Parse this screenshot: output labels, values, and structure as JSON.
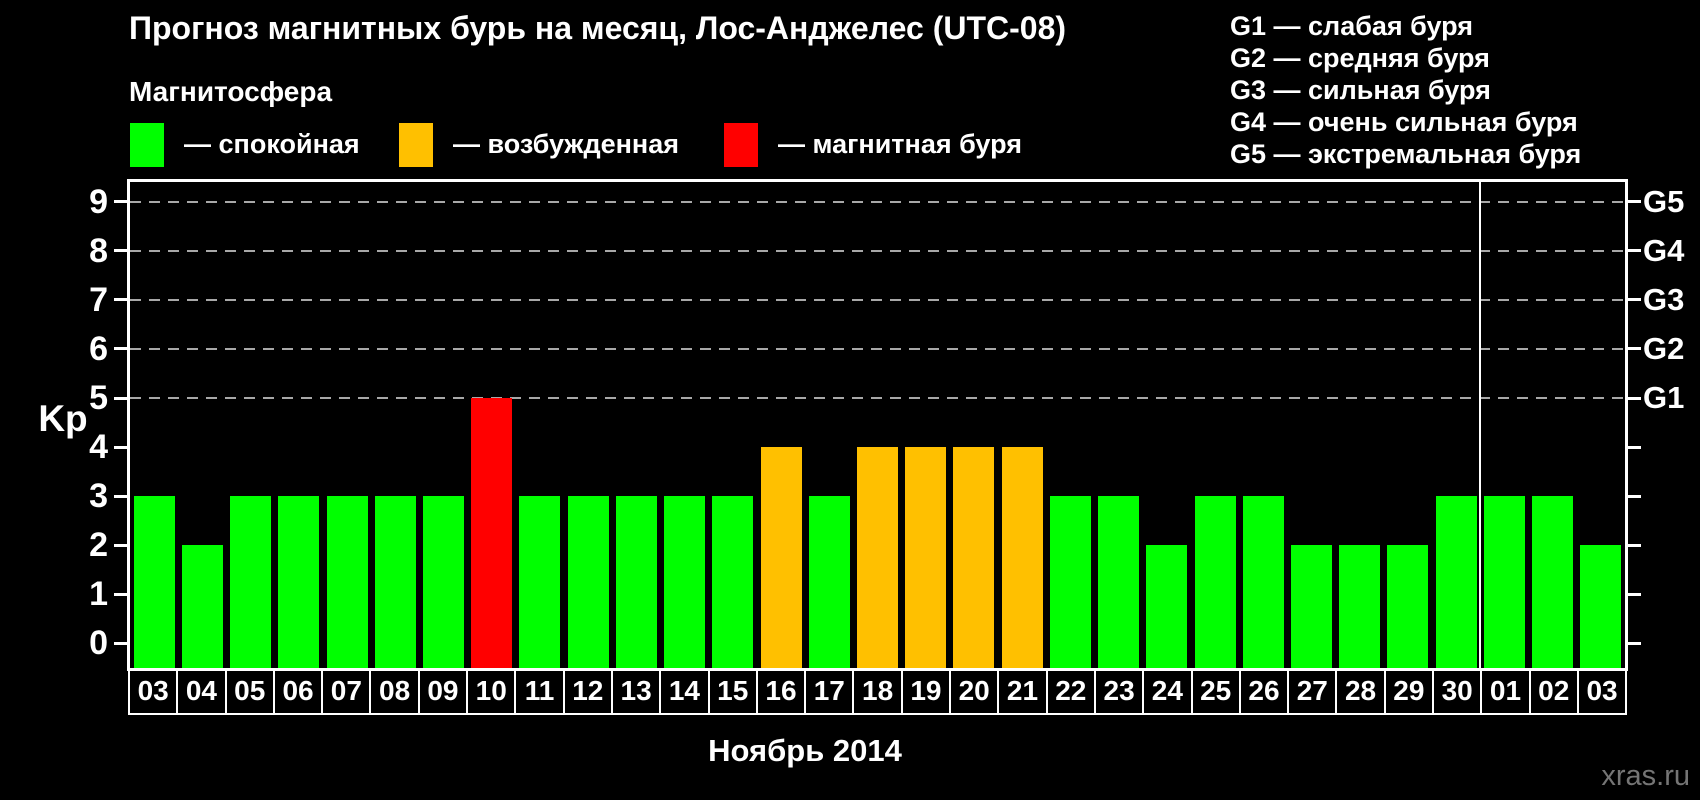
{
  "title": "Прогноз магнитных бурь на месяц, Лос-Анджелес (UTC-08)",
  "magnetosphere": {
    "heading": "Магнитосфера",
    "legend": [
      {
        "name": "calm",
        "color": "#00ff00",
        "label": "— спокойная"
      },
      {
        "name": "excited",
        "color": "#ffc000",
        "label": "— возбужденная"
      },
      {
        "name": "storm",
        "color": "#ff0000",
        "label": "— магнитная буря"
      }
    ]
  },
  "storm_scale": [
    "G1 — слабая буря",
    "G2 — средняя буря",
    "G3 — сильная буря",
    "G4 — очень сильная буря",
    "G5 — экстремальная буря"
  ],
  "watermark": "xras.ru",
  "chart_data": {
    "type": "bar",
    "title": "Прогноз магнитных бурь на месяц, Лос-Анджелес (UTC-08)",
    "ylabel": "Kp",
    "xlabel": "Ноябрь 2014",
    "ylim": [
      -0.5,
      9.4
    ],
    "yticks": [
      0,
      1,
      2,
      3,
      4,
      5,
      6,
      7,
      8,
      9
    ],
    "grid_values": [
      5,
      6,
      7,
      8,
      9
    ],
    "grid": "dashed-horizontal",
    "legend_position": "top",
    "right_axis": [
      {
        "value": 5,
        "label": "G1"
      },
      {
        "value": 6,
        "label": "G2"
      },
      {
        "value": 7,
        "label": "G3"
      },
      {
        "value": 8,
        "label": "G4"
      },
      {
        "value": 9,
        "label": "G5"
      }
    ],
    "categories": [
      "03",
      "04",
      "05",
      "06",
      "07",
      "08",
      "09",
      "10",
      "11",
      "12",
      "13",
      "14",
      "15",
      "16",
      "17",
      "18",
      "19",
      "20",
      "21",
      "22",
      "23",
      "24",
      "25",
      "26",
      "27",
      "28",
      "29",
      "30",
      "01",
      "02",
      "03"
    ],
    "values": [
      3,
      2,
      3,
      3,
      3,
      3,
      3,
      5,
      3,
      3,
      3,
      3,
      3,
      4,
      3,
      4,
      4,
      4,
      4,
      3,
      3,
      2,
      3,
      3,
      2,
      2,
      2,
      3,
      3,
      3,
      2
    ],
    "states": [
      "calm",
      "calm",
      "calm",
      "calm",
      "calm",
      "calm",
      "calm",
      "storm",
      "calm",
      "calm",
      "calm",
      "calm",
      "calm",
      "excited",
      "calm",
      "excited",
      "excited",
      "excited",
      "excited",
      "calm",
      "calm",
      "calm",
      "calm",
      "calm",
      "calm",
      "calm",
      "calm",
      "calm",
      "calm",
      "calm",
      "calm"
    ],
    "colors": {
      "calm": "#00ff00",
      "excited": "#ffc000",
      "storm": "#ff0000"
    },
    "month_separator_after_index": 27
  }
}
